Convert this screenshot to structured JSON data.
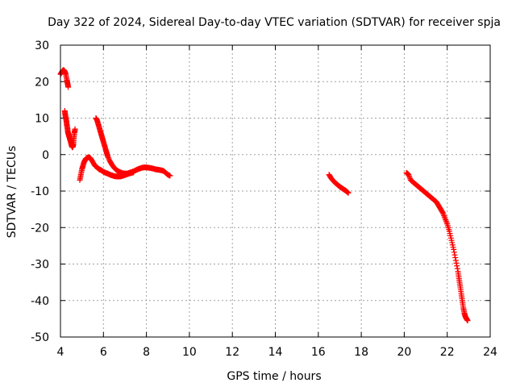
{
  "chart_data": {
    "type": "scatter",
    "title": "Day 322 of 2024, Sidereal Day-to-day VTEC variation (SDTVAR) for receiver spja",
    "xlabel": "GPS time / hours",
    "ylabel": "SDTVAR / TECUs",
    "xlim": [
      4,
      24
    ],
    "ylim": [
      -50,
      30
    ],
    "xticks": [
      4,
      6,
      8,
      10,
      12,
      14,
      16,
      18,
      20,
      22,
      24
    ],
    "yticks": [
      30,
      20,
      10,
      0,
      -10,
      -20,
      -30,
      -40,
      -50
    ],
    "grid": true,
    "marker": "+",
    "series": [
      {
        "name": "SDTVAR",
        "color": "#ff0000",
        "segments": [
          [
            [
              4.0,
              22.0
            ],
            [
              4.05,
              22.5
            ],
            [
              4.1,
              23.0
            ],
            [
              4.15,
              23.2
            ],
            [
              4.2,
              22.8
            ],
            [
              4.25,
              22.0
            ],
            [
              4.3,
              20.5
            ],
            [
              4.33,
              19.5
            ],
            [
              4.36,
              18.5
            ]
          ],
          [
            [
              4.2,
              12.0
            ],
            [
              4.22,
              11.0
            ],
            [
              4.25,
              10.0
            ],
            [
              4.28,
              9.0
            ],
            [
              4.3,
              8.0
            ],
            [
              4.33,
              7.0
            ],
            [
              4.35,
              6.0
            ],
            [
              4.38,
              5.5
            ],
            [
              4.4,
              5.0
            ],
            [
              4.43,
              4.5
            ],
            [
              4.45,
              4.0
            ],
            [
              4.48,
              3.5
            ],
            [
              4.5,
              3.0
            ],
            [
              4.52,
              2.5
            ],
            [
              4.55,
              2.0
            ],
            [
              4.58,
              2.2
            ],
            [
              4.6,
              3.0
            ],
            [
              4.62,
              4.5
            ],
            [
              4.65,
              6.0
            ],
            [
              4.68,
              7.0
            ]
          ],
          [
            [
              4.9,
              -7.0
            ],
            [
              4.95,
              -5.5
            ],
            [
              5.0,
              -4.0
            ],
            [
              5.05,
              -3.0
            ],
            [
              5.1,
              -2.0
            ],
            [
              5.15,
              -1.5
            ],
            [
              5.2,
              -1.0
            ],
            [
              5.3,
              -0.7
            ],
            [
              5.4,
              -1.0
            ],
            [
              5.5,
              -2.0
            ],
            [
              5.6,
              -3.0
            ],
            [
              5.7,
              -3.5
            ],
            [
              5.8,
              -4.0
            ]
          ],
          [
            [
              5.65,
              10.0
            ],
            [
              5.7,
              9.5
            ],
            [
              5.75,
              8.5
            ],
            [
              5.8,
              7.5
            ],
            [
              5.85,
              6.5
            ],
            [
              5.9,
              5.5
            ],
            [
              5.95,
              4.5
            ],
            [
              6.0,
              3.5
            ],
            [
              6.05,
              2.5
            ],
            [
              6.1,
              1.5
            ],
            [
              6.15,
              0.5
            ],
            [
              6.2,
              -0.5
            ],
            [
              6.3,
              -1.8
            ],
            [
              6.4,
              -2.8
            ],
            [
              6.5,
              -3.6
            ],
            [
              6.6,
              -4.2
            ],
            [
              6.7,
              -4.6
            ],
            [
              6.8,
              -4.9
            ],
            [
              6.9,
              -5.1
            ],
            [
              7.0,
              -5.2
            ],
            [
              7.1,
              -5.2
            ],
            [
              7.2,
              -5.0
            ],
            [
              7.3,
              -4.8
            ],
            [
              7.4,
              -4.6
            ],
            [
              7.5,
              -4.3
            ],
            [
              7.6,
              -4.0
            ],
            [
              7.7,
              -3.8
            ],
            [
              7.8,
              -3.6
            ],
            [
              7.9,
              -3.5
            ],
            [
              8.0,
              -3.5
            ],
            [
              8.1,
              -3.6
            ],
            [
              8.2,
              -3.7
            ],
            [
              8.3,
              -3.8
            ],
            [
              8.4,
              -4.0
            ],
            [
              8.5,
              -4.1
            ],
            [
              8.6,
              -4.2
            ],
            [
              8.7,
              -4.3
            ],
            [
              8.8,
              -4.5
            ],
            [
              8.9,
              -5.0
            ],
            [
              9.0,
              -5.5
            ],
            [
              9.1,
              -5.8
            ]
          ],
          [
            [
              5.8,
              -4.0
            ],
            [
              5.9,
              -4.3
            ],
            [
              6.0,
              -4.7
            ],
            [
              6.1,
              -5.0
            ],
            [
              6.2,
              -5.2
            ],
            [
              6.3,
              -5.5
            ],
            [
              6.4,
              -5.7
            ],
            [
              6.5,
              -5.9
            ],
            [
              6.6,
              -6.0
            ],
            [
              6.7,
              -6.0
            ],
            [
              6.8,
              -6.0
            ],
            [
              6.9,
              -5.8
            ],
            [
              7.0,
              -5.6
            ],
            [
              7.1,
              -5.4
            ],
            [
              7.2,
              -5.2
            ],
            [
              7.3,
              -5.0
            ],
            [
              7.4,
              -4.9
            ]
          ],
          [
            [
              16.5,
              -5.5
            ],
            [
              16.6,
              -6.5
            ],
            [
              16.7,
              -7.2
            ],
            [
              16.8,
              -7.8
            ],
            [
              16.9,
              -8.3
            ],
            [
              17.0,
              -8.8
            ],
            [
              17.1,
              -9.2
            ],
            [
              17.2,
              -9.6
            ],
            [
              17.3,
              -10.0
            ],
            [
              17.4,
              -10.5
            ]
          ],
          [
            [
              20.1,
              -5.0
            ],
            [
              20.15,
              -5.2
            ],
            [
              20.2,
              -5.5
            ],
            [
              20.3,
              -7.0
            ],
            [
              20.4,
              -7.5
            ],
            [
              20.5,
              -8.0
            ],
            [
              20.6,
              -8.5
            ],
            [
              20.7,
              -9.0
            ],
            [
              20.8,
              -9.5
            ],
            [
              20.9,
              -10.0
            ],
            [
              21.0,
              -10.5
            ],
            [
              21.1,
              -11.0
            ],
            [
              21.2,
              -11.5
            ],
            [
              21.3,
              -12.0
            ],
            [
              21.4,
              -12.5
            ],
            [
              21.5,
              -13.0
            ],
            [
              21.6,
              -14.0
            ],
            [
              21.7,
              -15.0
            ],
            [
              21.8,
              -16.0
            ],
            [
              21.9,
              -17.5
            ],
            [
              22.0,
              -19.0
            ],
            [
              22.1,
              -21.0
            ],
            [
              22.2,
              -23.5
            ],
            [
              22.3,
              -26.0
            ],
            [
              22.4,
              -29.0
            ],
            [
              22.5,
              -32.0
            ],
            [
              22.55,
              -34.0
            ],
            [
              22.6,
              -36.0
            ],
            [
              22.65,
              -38.0
            ],
            [
              22.7,
              -40.0
            ],
            [
              22.75,
              -42.0
            ],
            [
              22.8,
              -43.5
            ],
            [
              22.85,
              -44.5
            ],
            [
              22.9,
              -45.0
            ],
            [
              22.95,
              -45.5
            ]
          ]
        ]
      }
    ]
  }
}
